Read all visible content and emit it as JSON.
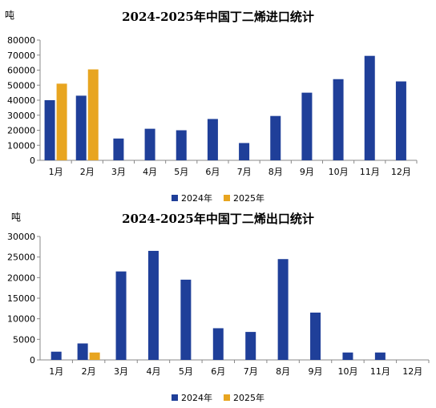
{
  "chart_data": [
    {
      "type": "bar",
      "title": "2024-2025年中国丁二烯进口统计",
      "ylabel": "吨",
      "categories": [
        "1月",
        "2月",
        "3月",
        "4月",
        "5月",
        "6月",
        "7月",
        "8月",
        "9月",
        "10月",
        "11月",
        "12月"
      ],
      "series": [
        {
          "name": "2024年",
          "color": "#1f3f99",
          "values": [
            40000,
            43000,
            14500,
            21000,
            20000,
            27500,
            11500,
            29500,
            45000,
            54000,
            69500,
            52500
          ]
        },
        {
          "name": "2025年",
          "color": "#e8a520",
          "values": [
            51000,
            60500,
            null,
            null,
            null,
            null,
            null,
            null,
            null,
            null,
            null,
            null
          ]
        }
      ],
      "ylim": [
        0,
        80000
      ],
      "yticks": [
        0,
        10000,
        20000,
        30000,
        40000,
        50000,
        60000,
        70000,
        80000
      ],
      "legend": "bottom",
      "grid": false
    },
    {
      "type": "bar",
      "title": "2024-2025年中国丁二烯出口统计",
      "ylabel": "吨",
      "categories": [
        "1月",
        "2月",
        "3月",
        "4月",
        "5月",
        "6月",
        "7月",
        "8月",
        "9月",
        "10月",
        "11月",
        "12月"
      ],
      "series": [
        {
          "name": "2024年",
          "color": "#1f3f99",
          "values": [
            2000,
            4000,
            21500,
            26500,
            19500,
            7700,
            6800,
            24500,
            11500,
            1800,
            1800,
            null
          ]
        },
        {
          "name": "2025年",
          "color": "#e8a520",
          "values": [
            null,
            1800,
            null,
            null,
            null,
            null,
            null,
            null,
            null,
            null,
            null,
            null
          ]
        }
      ],
      "ylim": [
        0,
        30000
      ],
      "yticks": [
        0,
        5000,
        10000,
        15000,
        20000,
        25000,
        30000
      ],
      "legend": "bottom",
      "grid": false
    }
  ]
}
